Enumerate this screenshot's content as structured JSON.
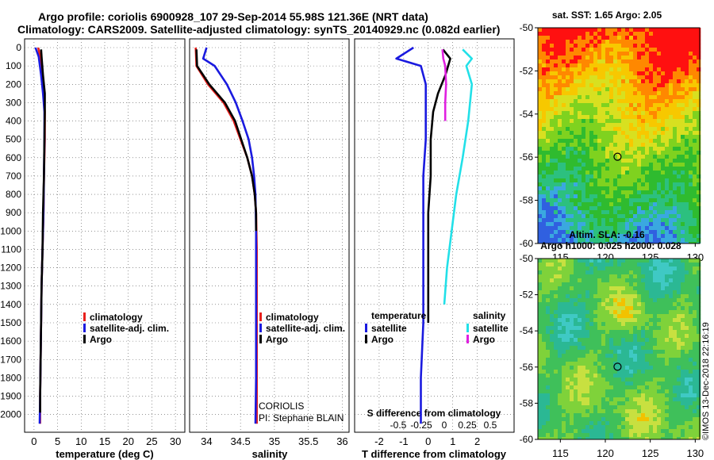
{
  "header": {
    "line1": "Argo profile: coriolis 6900928_107 29-Sep-2014 55.98S 121.36E (NRT data)",
    "line2": "Climatology: CARS2009. Satellite-adjusted climatology: synTS_20140929.nc (0.082d earlier)"
  },
  "watermark": "©IMOS 13-Dec-2018 22:16:19",
  "colors": {
    "climatology": "#e8201c",
    "satellite": "#1a1adf",
    "argo": "#000000",
    "sal_satellite": "#22e0e8",
    "sal_argo": "#e020e0"
  },
  "chart_data": [
    {
      "type": "line",
      "id": "temperature",
      "xlabel": "temperature (deg C)",
      "xlim": [
        -2,
        32
      ],
      "xticks": [
        0,
        5,
        10,
        15,
        20,
        25,
        30
      ],
      "ylim": [
        2075,
        0
      ],
      "yticks": [
        0,
        100,
        200,
        300,
        400,
        500,
        600,
        700,
        800,
        900,
        1000,
        1100,
        1200,
        1300,
        1400,
        1500,
        1600,
        1700,
        1800,
        1900,
        2000
      ],
      "legend": [
        "climatology",
        "satellite-adj. clim.",
        "Argo"
      ],
      "series": [
        {
          "name": "climatology",
          "x": [
            0.9,
            1.3,
            1.6,
            2.0,
            2.3,
            2.3,
            2.1,
            2.0,
            1.8,
            1.6,
            1.5,
            1.4,
            1.3,
            1.3
          ],
          "y": [
            0,
            50,
            150,
            250,
            350,
            500,
            700,
            900,
            1100,
            1300,
            1500,
            1700,
            1900,
            2050
          ]
        },
        {
          "name": "satellite-adj. clim.",
          "x": [
            0.3,
            1.0,
            1.5,
            1.9,
            2.2,
            2.2,
            2.1,
            2.0,
            1.8,
            1.6,
            1.5,
            1.4,
            1.3,
            1.2
          ],
          "y": [
            0,
            50,
            150,
            250,
            350,
            500,
            700,
            900,
            1100,
            1300,
            1500,
            1700,
            1900,
            2050
          ]
        },
        {
          "name": "Argo",
          "x": [
            1.5,
            1.6,
            1.9,
            2.3,
            2.3,
            2.2,
            2.1,
            1.9,
            1.8,
            1.6,
            1.5,
            1.4,
            1.3,
            1.3
          ],
          "y": [
            10,
            50,
            150,
            250,
            350,
            500,
            700,
            900,
            1100,
            1300,
            1500,
            1700,
            1900,
            1990
          ]
        }
      ]
    },
    {
      "type": "line",
      "id": "salinity",
      "xlabel": "salinity",
      "xlim": [
        33.75,
        36.1
      ],
      "xticks": [
        34,
        34.5,
        35,
        35.5,
        36
      ],
      "ylim": [
        2075,
        0
      ],
      "legend": [
        "climatology",
        "satellite-adj. clim.",
        "Argo"
      ],
      "annotation": [
        "CORIOLIS",
        "PI: Stephane BLAIN"
      ],
      "series": [
        {
          "name": "climatology",
          "x": [
            33.84,
            33.85,
            34.02,
            34.25,
            34.4,
            34.5,
            34.6,
            34.67,
            34.71,
            34.73,
            34.74,
            34.74,
            34.74,
            34.74
          ],
          "y": [
            0,
            100,
            200,
            300,
            400,
            500,
            600,
            700,
            800,
            900,
            1100,
            1400,
            1800,
            2050
          ]
        },
        {
          "name": "satellite-adj. clim.",
          "x": [
            34.0,
            33.95,
            34.12,
            34.3,
            34.43,
            34.53,
            34.62,
            34.67,
            34.7,
            34.72,
            34.73,
            34.73,
            34.73,
            34.72
          ],
          "y": [
            0,
            60,
            100,
            200,
            300,
            400,
            500,
            600,
            700,
            800,
            1000,
            1400,
            1800,
            2050
          ]
        },
        {
          "name": "Argo",
          "x": [
            33.85,
            33.86,
            34.04,
            34.27,
            34.42,
            34.51,
            34.6,
            34.67,
            34.71,
            34.73,
            34.73
          ],
          "y": [
            10,
            100,
            200,
            300,
            400,
            500,
            600,
            700,
            800,
            900,
            1000
          ]
        }
      ]
    },
    {
      "type": "line",
      "id": "differences",
      "xlabel": "T difference from climatology",
      "xlabel_top": "S difference from climatology",
      "xlim_T": [
        -3,
        3.5
      ],
      "xticks_T": [
        -2,
        -1,
        0,
        1,
        2
      ],
      "xticks_S": [
        -0.5,
        -0.25,
        0,
        0.25,
        0.5
      ],
      "xtick_labels_S": [
        "-0.5",
        "-0.25",
        "0",
        "0.25",
        "0.5"
      ],
      "legend_temperature_title": "temperature",
      "legend_salinity_title": "salinity",
      "legend_temperature": [
        "satellite",
        "Argo"
      ],
      "legend_salinity": [
        "satellite",
        "Argo"
      ],
      "series": [
        {
          "name": "T satellite",
          "x": [
            -0.6,
            -1.3,
            -0.3,
            -0.1,
            -0.1,
            -0.1,
            -0.2,
            -0.2,
            -0.2,
            -0.2,
            -0.2,
            -0.3,
            -0.3
          ],
          "y": [
            0,
            60,
            100,
            200,
            300,
            500,
            700,
            900,
            1100,
            1300,
            1500,
            1800,
            2050
          ]
        },
        {
          "name": "T Argo",
          "x": [
            0.6,
            0.9,
            0.7,
            0.4,
            0.2,
            0.1,
            0.1,
            0.0,
            0.0,
            0.0,
            0.0
          ],
          "y": [
            10,
            60,
            150,
            250,
            350,
            500,
            700,
            900,
            1100,
            1300,
            1500
          ]
        },
        {
          "name": "S satellite",
          "x": [
            0.2,
            0.3,
            0.24,
            0.3,
            0.26,
            0.2,
            0.13,
            0.08,
            0.03,
            0.0
          ],
          "y": [
            10,
            60,
            100,
            200,
            400,
            600,
            800,
            1000,
            1200,
            1400
          ]
        },
        {
          "name": "S Argo",
          "x": [
            -0.02,
            -0.01,
            0.01,
            0.02,
            0.01,
            0.01
          ],
          "y": [
            10,
            60,
            100,
            200,
            300,
            400
          ]
        }
      ]
    },
    {
      "type": "heatmap",
      "id": "sst_map",
      "title": "sat. SST: 1.65 Argo: 2.05",
      "xticks": [
        115,
        120,
        125,
        130
      ],
      "yticks": [
        -50,
        -52,
        -54,
        -56,
        -58,
        -60
      ],
      "xlim": [
        112.5,
        130.5
      ],
      "ylim": [
        -60,
        -50
      ],
      "argo_position": [
        121.36,
        -55.98
      ]
    },
    {
      "type": "heatmap",
      "id": "sla_map",
      "title": "Altim. SLA: -0.16",
      "subtitle": "Argo h1000: 0.025 h2000: 0.028",
      "xticks": [
        115,
        120,
        125,
        130
      ],
      "yticks": [
        -50,
        -52,
        -54,
        -56,
        -58,
        -60
      ],
      "xlim": [
        112.5,
        130.5
      ],
      "ylim": [
        -60,
        -50
      ],
      "argo_position": [
        121.36,
        -55.98
      ]
    }
  ]
}
